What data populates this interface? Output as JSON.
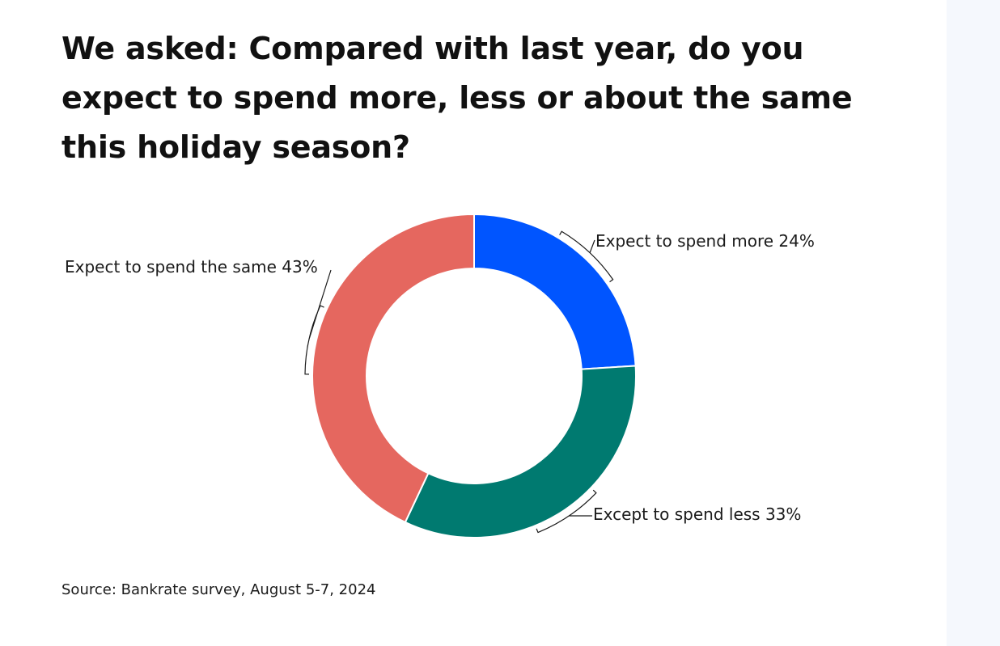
{
  "title": "We asked: Compared with last year, do you expect to spend more, less or about the same this holiday season?",
  "source": "Source: Bankrate survey, August 5-7, 2024",
  "chart_data": {
    "type": "pie",
    "variant": "donut",
    "categories": [
      "Expect to spend more",
      "Except to spend less",
      "Expect to spend the same"
    ],
    "values": [
      24,
      33,
      43
    ],
    "unit": "%",
    "labels": [
      "Expect to spend more 24%",
      "Except to spend less 33%",
      "Expect to spend the same 43%"
    ],
    "colors": [
      "#0055ff",
      "#007a70",
      "#e5675f"
    ],
    "start_angle_deg": 0,
    "direction": "clockwise"
  }
}
